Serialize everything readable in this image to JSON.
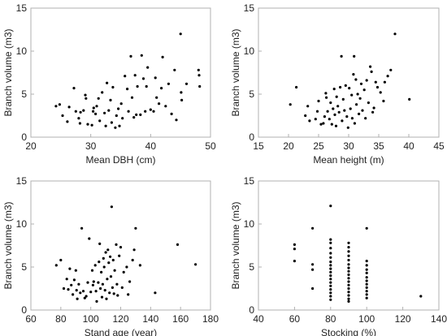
{
  "chart_data": [
    {
      "type": "scatter",
      "xlabel": "Mean DBH (cm)",
      "ylabel": "Branch volume (m3)",
      "xlim": [
        20,
        50
      ],
      "ylim": [
        0,
        15
      ],
      "xticks": [
        "20",
        "30",
        "40",
        "50"
      ],
      "yticks": [
        "0",
        "5",
        "10",
        "15"
      ],
      "grid": false,
      "points": [
        [
          24.2,
          3.6
        ],
        [
          24.8,
          3.8
        ],
        [
          25.3,
          2.5
        ],
        [
          26.1,
          1.8
        ],
        [
          26.4,
          3.5
        ],
        [
          27.2,
          5.7
        ],
        [
          27.5,
          3.0
        ],
        [
          28.0,
          2.2
        ],
        [
          28.2,
          1.6
        ],
        [
          28.3,
          2.9
        ],
        [
          28.8,
          3.1
        ],
        [
          29.1,
          4.9
        ],
        [
          29.2,
          4.5
        ],
        [
          29.5,
          1.5
        ],
        [
          30.2,
          1.4
        ],
        [
          30.4,
          3.0
        ],
        [
          30.5,
          3.4
        ],
        [
          30.8,
          2.7
        ],
        [
          31.0,
          3.6
        ],
        [
          31.3,
          4.5
        ],
        [
          31.5,
          1.9
        ],
        [
          31.9,
          5.2
        ],
        [
          32.3,
          2.8
        ],
        [
          32.5,
          1.3
        ],
        [
          32.7,
          6.3
        ],
        [
          33.0,
          3.1
        ],
        [
          33.3,
          4.3
        ],
        [
          33.5,
          1.7
        ],
        [
          33.7,
          5.8
        ],
        [
          34.1,
          1.1
        ],
        [
          34.3,
          2.5
        ],
        [
          34.6,
          3.3
        ],
        [
          34.8,
          1.3
        ],
        [
          35.1,
          3.9
        ],
        [
          35.3,
          2.2
        ],
        [
          35.7,
          7.1
        ],
        [
          36.1,
          5.6
        ],
        [
          36.3,
          3.0
        ],
        [
          36.7,
          9.4
        ],
        [
          36.9,
          4.6
        ],
        [
          37.2,
          2.3
        ],
        [
          37.4,
          7.2
        ],
        [
          37.6,
          2.6
        ],
        [
          37.8,
          5.9
        ],
        [
          38.3,
          2.6
        ],
        [
          38.5,
          9.5
        ],
        [
          38.8,
          6.8
        ],
        [
          39.1,
          3.0
        ],
        [
          39.3,
          5.9
        ],
        [
          39.5,
          8.1
        ],
        [
          40.0,
          3.2
        ],
        [
          40.5,
          3.0
        ],
        [
          40.8,
          6.9
        ],
        [
          41.0,
          4.6
        ],
        [
          41.4,
          3.9
        ],
        [
          41.8,
          5.7
        ],
        [
          42.0,
          9.3
        ],
        [
          42.5,
          3.6
        ],
        [
          43.0,
          6.2
        ],
        [
          43.5,
          2.7
        ],
        [
          44.0,
          7.8
        ],
        [
          44.3,
          2.0
        ],
        [
          45.0,
          12.0
        ],
        [
          45.1,
          5.2
        ],
        [
          45.2,
          4.3
        ],
        [
          46.0,
          6.2
        ],
        [
          48.0,
          7.8
        ],
        [
          48.1,
          7.2
        ],
        [
          48.2,
          5.9
        ]
      ]
    },
    {
      "type": "scatter",
      "xlabel": "Mean height (m)",
      "ylabel": "Branch volume (m3)",
      "xlim": [
        15,
        45
      ],
      "ylim": [
        0,
        15
      ],
      "xticks": [
        "15",
        "20",
        "25",
        "30",
        "35",
        "40",
        "45"
      ],
      "yticks": [
        "0",
        "5",
        "10",
        "15"
      ],
      "grid": false,
      "points": [
        [
          20.3,
          3.8
        ],
        [
          21.3,
          5.8
        ],
        [
          22.8,
          2.5
        ],
        [
          23.2,
          3.6
        ],
        [
          23.5,
          1.9
        ],
        [
          24.5,
          2.1
        ],
        [
          24.8,
          3.0
        ],
        [
          25.0,
          4.2
        ],
        [
          25.4,
          1.5
        ],
        [
          25.8,
          1.6
        ],
        [
          26.0,
          2.4
        ],
        [
          26.2,
          5.1
        ],
        [
          26.3,
          4.6
        ],
        [
          26.5,
          3.0
        ],
        [
          26.8,
          2.1
        ],
        [
          27.0,
          4.0
        ],
        [
          27.2,
          1.5
        ],
        [
          27.4,
          3.3
        ],
        [
          27.6,
          5.6
        ],
        [
          27.7,
          2.6
        ],
        [
          27.9,
          1.3
        ],
        [
          28.0,
          4.7
        ],
        [
          28.2,
          3.6
        ],
        [
          28.4,
          2.9
        ],
        [
          28.6,
          5.8
        ],
        [
          28.8,
          9.4
        ],
        [
          28.9,
          1.9
        ],
        [
          29.1,
          4.4
        ],
        [
          29.3,
          3.1
        ],
        [
          29.5,
          6.0
        ],
        [
          29.7,
          2.4
        ],
        [
          29.9,
          1.1
        ],
        [
          30.1,
          5.7
        ],
        [
          30.3,
          3.3
        ],
        [
          30.5,
          4.9
        ],
        [
          30.6,
          2.2
        ],
        [
          30.8,
          7.3
        ],
        [
          30.9,
          9.4
        ],
        [
          31.0,
          1.6
        ],
        [
          31.2,
          6.7
        ],
        [
          31.3,
          3.8
        ],
        [
          31.5,
          5.0
        ],
        [
          31.7,
          2.7
        ],
        [
          31.9,
          4.5
        ],
        [
          32.1,
          6.2
        ],
        [
          32.3,
          3.1
        ],
        [
          32.6,
          5.5
        ],
        [
          32.8,
          2.2
        ],
        [
          33.0,
          6.6
        ],
        [
          33.3,
          4.0
        ],
        [
          33.6,
          8.2
        ],
        [
          33.8,
          7.6
        ],
        [
          34.0,
          2.9
        ],
        [
          34.2,
          3.4
        ],
        [
          34.5,
          6.4
        ],
        [
          34.8,
          5.8
        ],
        [
          35.3,
          5.2
        ],
        [
          35.8,
          4.2
        ],
        [
          36.0,
          6.4
        ],
        [
          36.5,
          7.1
        ],
        [
          37.0,
          7.8
        ],
        [
          37.7,
          12.0
        ],
        [
          40.1,
          4.4
        ]
      ]
    },
    {
      "type": "scatter",
      "xlabel": "Stand age (year)",
      "ylabel": "Branch volume (m3)",
      "xlim": [
        60,
        180
      ],
      "ylim": [
        0,
        15
      ],
      "xticks": [
        "60",
        "80",
        "100",
        "120",
        "140",
        "160",
        "180"
      ],
      "yticks": [
        "0",
        "5",
        "10",
        "15"
      ],
      "grid": false,
      "points": [
        [
          77,
          5.2
        ],
        [
          80,
          5.8
        ],
        [
          82,
          2.5
        ],
        [
          84,
          3.6
        ],
        [
          85,
          2.4
        ],
        [
          86,
          4.8
        ],
        [
          87,
          2.9
        ],
        [
          88,
          1.8
        ],
        [
          89,
          3.5
        ],
        [
          90,
          4.6
        ],
        [
          90.5,
          2.3
        ],
        [
          91,
          1.3
        ],
        [
          92,
          3.0
        ],
        [
          93,
          2.0
        ],
        [
          94,
          9.5
        ],
        [
          95,
          2.2
        ],
        [
          96,
          1.4
        ],
        [
          97,
          1.6
        ],
        [
          98,
          3.2
        ],
        [
          99,
          8.3
        ],
        [
          100,
          2.1
        ],
        [
          101,
          4.6
        ],
        [
          101.5,
          2.9
        ],
        [
          102,
          3.3
        ],
        [
          103,
          5.2
        ],
        [
          103.5,
          2.2
        ],
        [
          104,
          1.0
        ],
        [
          105,
          3.2
        ],
        [
          105.5,
          5.6
        ],
        [
          106,
          7.7
        ],
        [
          106.5,
          2.5
        ],
        [
          107,
          4.4
        ],
        [
          107.5,
          1.5
        ],
        [
          108,
          3.0
        ],
        [
          108.5,
          6.0
        ],
        [
          109,
          5.0
        ],
        [
          109.5,
          2.3
        ],
        [
          110,
          6.7
        ],
        [
          110.5,
          1.3
        ],
        [
          111,
          3.6
        ],
        [
          111.5,
          7.0
        ],
        [
          112,
          5.5
        ],
        [
          112.5,
          2.0
        ],
        [
          113,
          6.2
        ],
        [
          113.5,
          3.9
        ],
        [
          114,
          12.0
        ],
        [
          114.5,
          2.6
        ],
        [
          115,
          5.8
        ],
        [
          115.5,
          1.9
        ],
        [
          116,
          4.6
        ],
        [
          117,
          7.6
        ],
        [
          117.5,
          3.0
        ],
        [
          118,
          1.7
        ],
        [
          119,
          6.3
        ],
        [
          120,
          7.3
        ],
        [
          121,
          2.6
        ],
        [
          122,
          4.4
        ],
        [
          124,
          5.0
        ],
        [
          125,
          1.8
        ],
        [
          126,
          3.3
        ],
        [
          128,
          5.8
        ],
        [
          129,
          7.0
        ],
        [
          130,
          9.5
        ],
        [
          133,
          5.2
        ],
        [
          143,
          2.0
        ],
        [
          158,
          7.6
        ],
        [
          170,
          5.3
        ]
      ]
    },
    {
      "type": "scatter",
      "xlabel": "Stocking (%)",
      "ylabel": "Branch volume (m3)",
      "xlim": [
        40,
        140
      ],
      "ylim": [
        0,
        15
      ],
      "xticks": [
        "40",
        "60",
        "80",
        "100",
        "120",
        "140"
      ],
      "yticks": [
        "0",
        "5",
        "10",
        "15"
      ],
      "grid": false,
      "points": [
        [
          60,
          7.6
        ],
        [
          60,
          7.1
        ],
        [
          60,
          5.7
        ],
        [
          70,
          9.5
        ],
        [
          70,
          5.3
        ],
        [
          70,
          4.7
        ],
        [
          70,
          2.5
        ],
        [
          80,
          12.1
        ],
        [
          80,
          8.2
        ],
        [
          80,
          7.8
        ],
        [
          80,
          7.2
        ],
        [
          80,
          6.6
        ],
        [
          80,
          6.1
        ],
        [
          80,
          5.6
        ],
        [
          80,
          5.2
        ],
        [
          80,
          4.8
        ],
        [
          80,
          4.4
        ],
        [
          80,
          4.0
        ],
        [
          80,
          3.6
        ],
        [
          80,
          3.2
        ],
        [
          80,
          2.8
        ],
        [
          80,
          2.4
        ],
        [
          80,
          2.0
        ],
        [
          80,
          1.6
        ],
        [
          80,
          1.2
        ],
        [
          90,
          7.8
        ],
        [
          90,
          7.3
        ],
        [
          90,
          6.8
        ],
        [
          90,
          6.3
        ],
        [
          90,
          5.8
        ],
        [
          90,
          5.3
        ],
        [
          90,
          4.9
        ],
        [
          90,
          4.5
        ],
        [
          90,
          4.1
        ],
        [
          90,
          3.7
        ],
        [
          90,
          3.3
        ],
        [
          90,
          2.9
        ],
        [
          90,
          2.5
        ],
        [
          90,
          2.1
        ],
        [
          90,
          1.7
        ],
        [
          90,
          1.3
        ],
        [
          90,
          1.0
        ],
        [
          100,
          9.5
        ],
        [
          100,
          5.7
        ],
        [
          100,
          5.2
        ],
        [
          100,
          4.7
        ],
        [
          100,
          4.3
        ],
        [
          100,
          3.8
        ],
        [
          100,
          3.4
        ],
        [
          100,
          3.0
        ],
        [
          100,
          2.6
        ],
        [
          100,
          2.2
        ],
        [
          100,
          1.8
        ],
        [
          100,
          1.4
        ],
        [
          130,
          1.6
        ]
      ]
    }
  ]
}
